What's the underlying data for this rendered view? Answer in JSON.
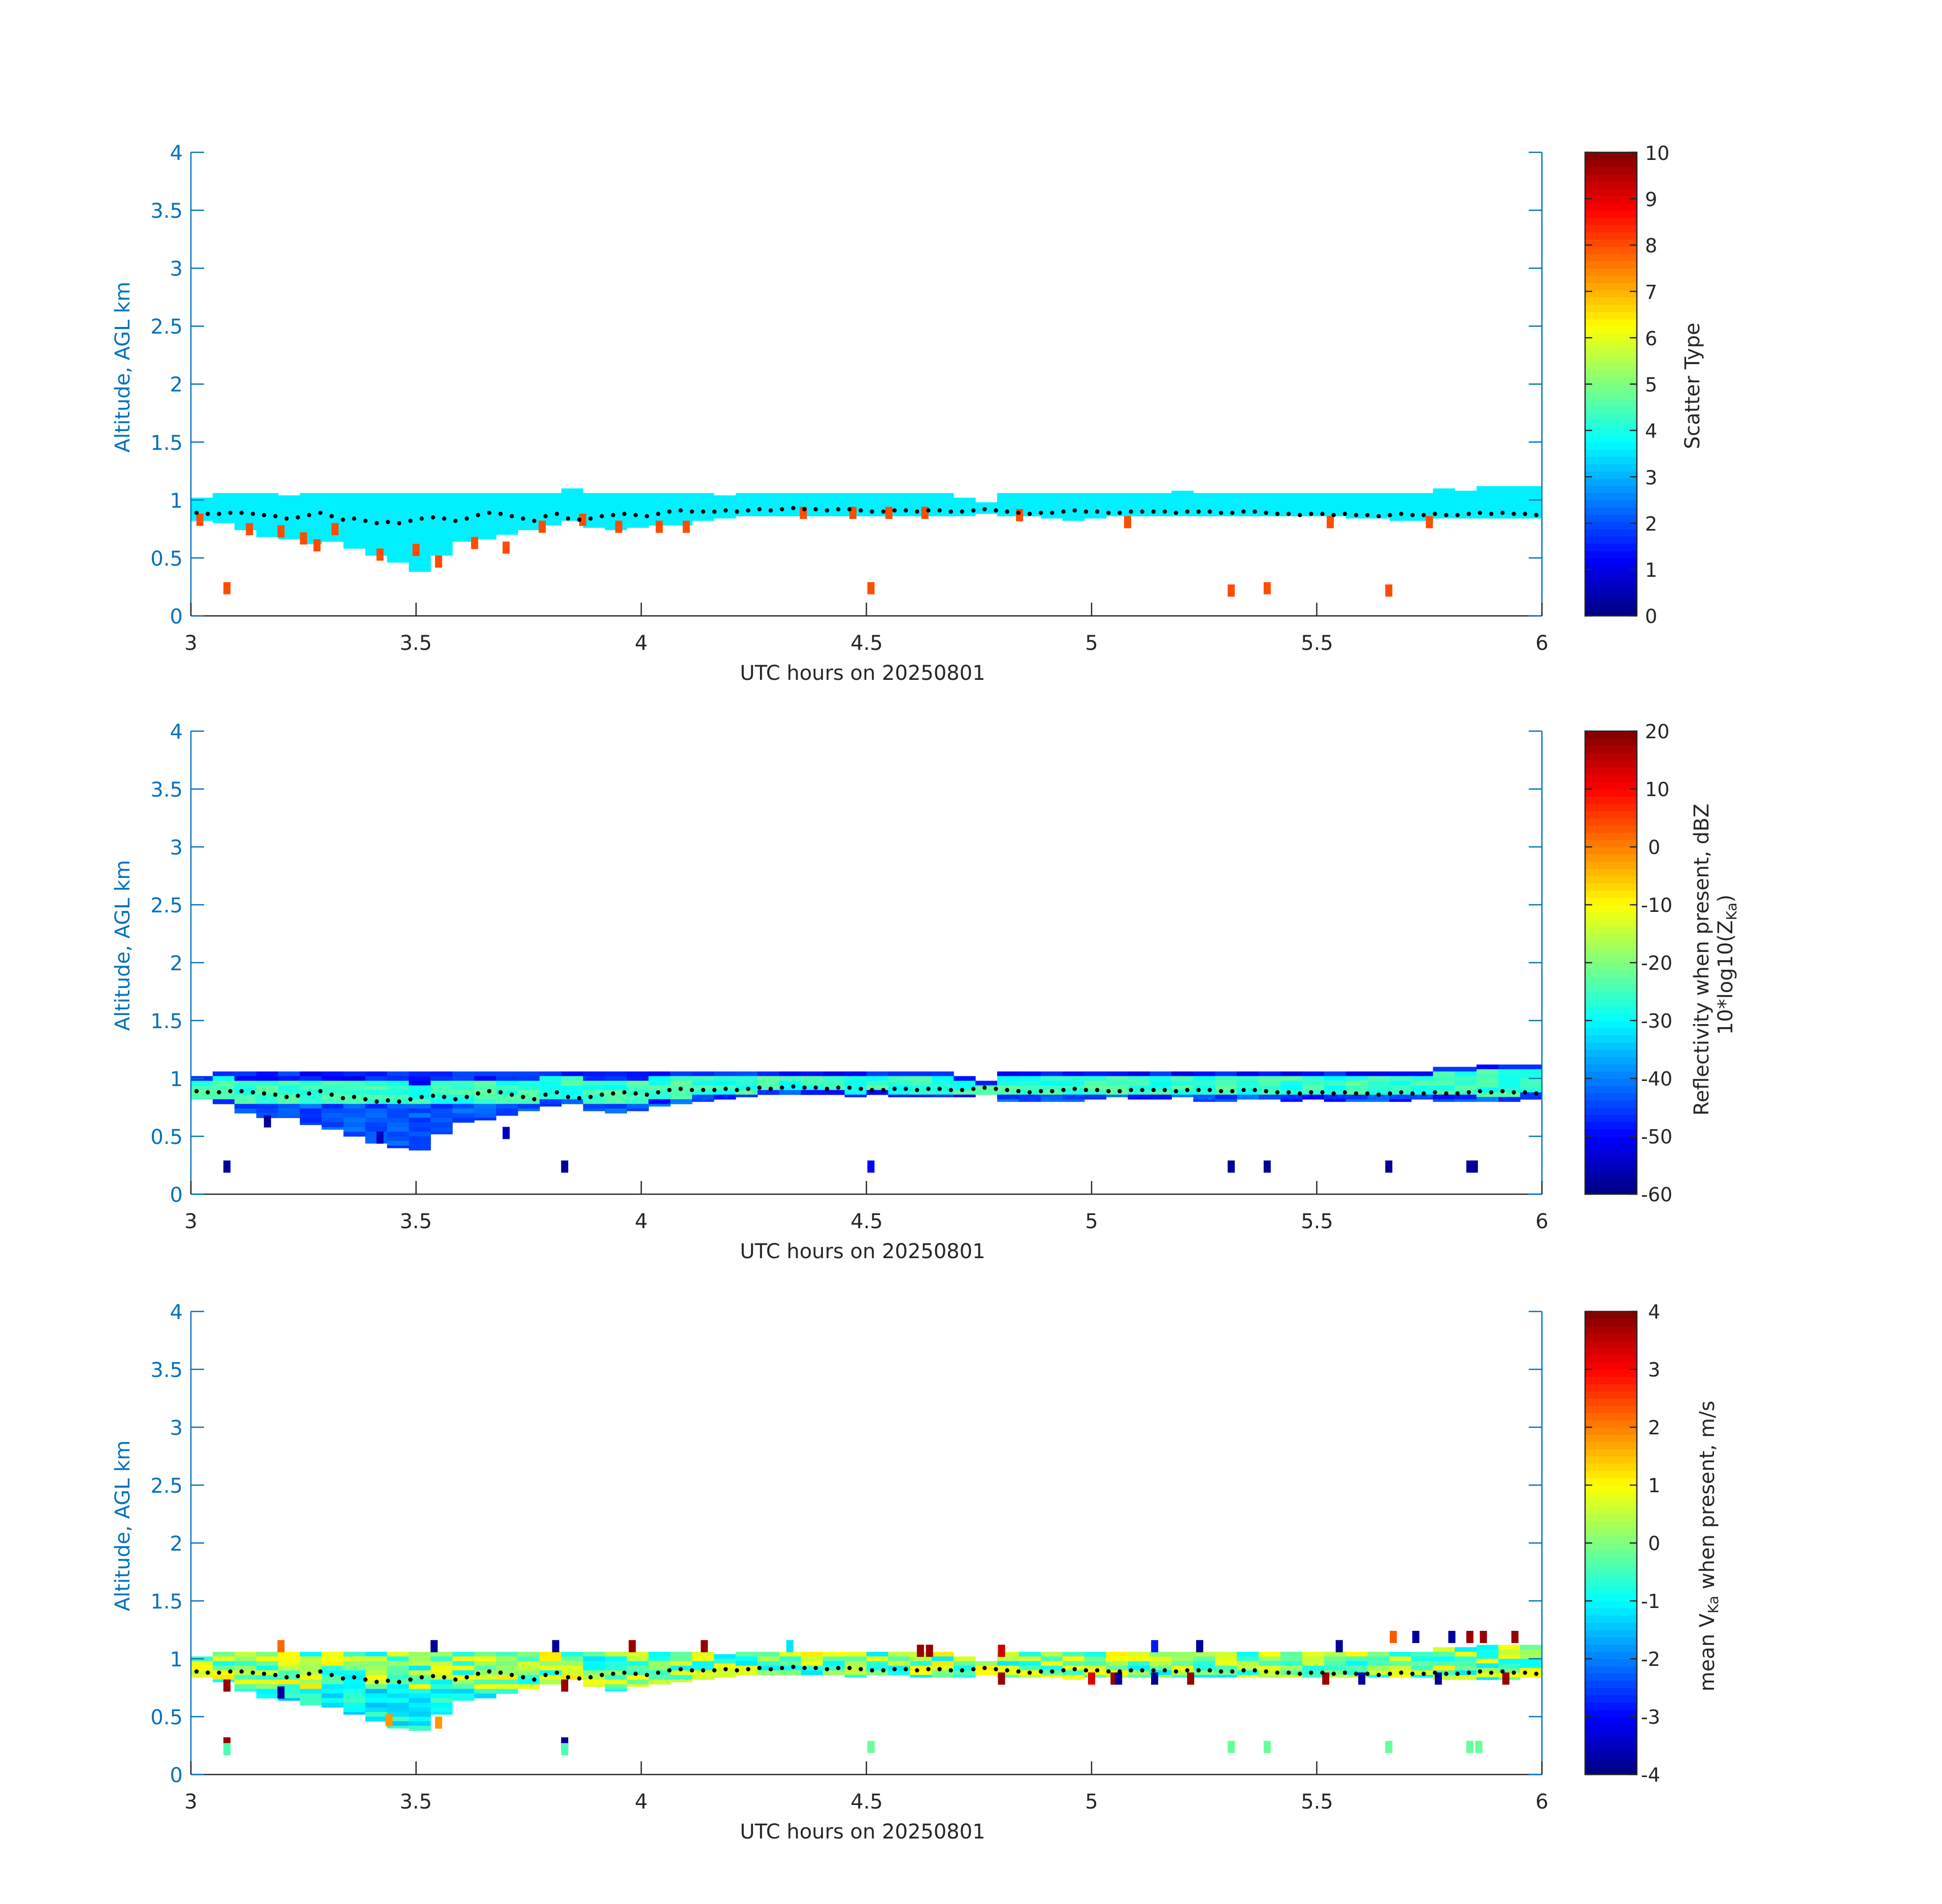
{
  "colors": {
    "axis_left": "#0072BD",
    "axis_bottom": "#262626",
    "background": "#ffffff",
    "colormap": "jet",
    "cloud_base_dots": "#000000"
  },
  "chart_data": [
    {
      "type": "heatmap",
      "xlabel": "UTC hours on 20250801",
      "ylabel": "Altitude, AGL km",
      "xlim": [
        3,
        6
      ],
      "ylim": [
        0,
        4
      ],
      "xticks": [
        "3",
        "3.5",
        "4",
        "4.5",
        "5",
        "5.5",
        "6"
      ],
      "yticks": [
        "0",
        "0.5",
        "1",
        "1.5",
        "2",
        "2.5",
        "3",
        "3.5",
        "4"
      ],
      "colorbar": {
        "label": "Scatter Type",
        "label2": "",
        "clim": [
          0,
          10
        ],
        "ticks": [
          "0",
          "1",
          "2",
          "3",
          "4",
          "5",
          "6",
          "7",
          "8",
          "9",
          "10"
        ]
      },
      "layer": {
        "value": 3.6,
        "top_km": [
          1.02,
          1.06,
          1.06,
          1.06,
          1.04,
          1.06,
          1.06,
          1.06,
          1.06,
          1.06,
          1.06,
          1.06,
          1.06,
          1.06,
          1.06,
          1.06,
          1.06,
          1.1,
          1.06,
          1.06,
          1.06,
          1.06,
          1.06,
          1.06,
          1.04,
          1.06,
          1.06,
          1.06,
          1.06,
          1.06,
          1.06,
          1.06,
          1.06,
          1.06,
          1.06,
          1.02,
          0.98,
          1.06,
          1.06,
          1.06,
          1.06,
          1.06,
          1.06,
          1.06,
          1.06,
          1.08,
          1.06,
          1.06,
          1.06,
          1.06,
          1.06,
          1.06,
          1.06,
          1.06,
          1.06,
          1.06,
          1.06,
          1.1,
          1.08,
          1.12,
          1.12,
          1.12
        ],
        "base_km": [
          0.82,
          0.8,
          0.74,
          0.68,
          0.66,
          0.62,
          0.64,
          0.58,
          0.52,
          0.46,
          0.38,
          0.52,
          0.64,
          0.66,
          0.7,
          0.74,
          0.78,
          0.82,
          0.76,
          0.74,
          0.76,
          0.78,
          0.78,
          0.82,
          0.84,
          0.86,
          0.86,
          0.86,
          0.86,
          0.86,
          0.86,
          0.86,
          0.86,
          0.86,
          0.86,
          0.86,
          0.88,
          0.86,
          0.86,
          0.84,
          0.82,
          0.84,
          0.86,
          0.86,
          0.86,
          0.86,
          0.86,
          0.86,
          0.86,
          0.86,
          0.86,
          0.86,
          0.86,
          0.84,
          0.84,
          0.82,
          0.82,
          0.84,
          0.84,
          0.84,
          0.84,
          0.84
        ]
      },
      "specks": [
        {
          "t": 3.02,
          "z": 0.82,
          "v": 8
        },
        {
          "t": 3.13,
          "z": 0.74,
          "v": 8
        },
        {
          "t": 3.2,
          "z": 0.72,
          "v": 8
        },
        {
          "t": 3.25,
          "z": 0.66,
          "v": 8
        },
        {
          "t": 3.28,
          "z": 0.6,
          "v": 8
        },
        {
          "t": 3.32,
          "z": 0.74,
          "v": 8
        },
        {
          "t": 3.42,
          "z": 0.52,
          "v": 8
        },
        {
          "t": 3.5,
          "z": 0.56,
          "v": 8
        },
        {
          "t": 3.55,
          "z": 0.46,
          "v": 8
        },
        {
          "t": 3.63,
          "z": 0.62,
          "v": 8
        },
        {
          "t": 3.7,
          "z": 0.58,
          "v": 8
        },
        {
          "t": 3.78,
          "z": 0.76,
          "v": 8
        },
        {
          "t": 3.87,
          "z": 0.82,
          "v": 8
        },
        {
          "t": 3.95,
          "z": 0.76,
          "v": 8
        },
        {
          "t": 4.04,
          "z": 0.76,
          "v": 8
        },
        {
          "t": 4.1,
          "z": 0.76,
          "v": 8
        },
        {
          "t": 4.36,
          "z": 0.88,
          "v": 8
        },
        {
          "t": 4.47,
          "z": 0.88,
          "v": 8
        },
        {
          "t": 4.55,
          "z": 0.88,
          "v": 8
        },
        {
          "t": 4.63,
          "z": 0.88,
          "v": 8
        },
        {
          "t": 4.84,
          "z": 0.86,
          "v": 8
        },
        {
          "t": 5.08,
          "z": 0.8,
          "v": 8
        },
        {
          "t": 5.53,
          "z": 0.8,
          "v": 8
        },
        {
          "t": 5.75,
          "z": 0.8,
          "v": 8
        },
        {
          "t": 3.08,
          "z": 0.23,
          "v": 8
        },
        {
          "t": 4.51,
          "z": 0.23,
          "v": 8
        },
        {
          "t": 5.31,
          "z": 0.21,
          "v": 8
        },
        {
          "t": 5.39,
          "z": 0.23,
          "v": 8
        },
        {
          "t": 5.66,
          "z": 0.21,
          "v": 8
        }
      ]
    },
    {
      "type": "heatmap",
      "xlabel": "UTC hours on 20250801",
      "ylabel": "Altitude, AGL km",
      "xlim": [
        3,
        6
      ],
      "ylim": [
        0,
        4
      ],
      "xticks": [
        "3",
        "3.5",
        "4",
        "4.5",
        "5",
        "5.5",
        "6"
      ],
      "yticks": [
        "0",
        "0.5",
        "1",
        "1.5",
        "2",
        "2.5",
        "3",
        "3.5",
        "4"
      ],
      "colorbar": {
        "label": "Reflectivity when present, dBZ",
        "label2": "10*log10(Z",
        "label2_sub": "Ka",
        "label2_end": ")",
        "clim": [
          -60,
          20
        ],
        "ticks": [
          "-60",
          "-50",
          "-40",
          "-30",
          "-20",
          "-10",
          "0",
          "10",
          "20"
        ]
      },
      "layer": {
        "top_km": [
          1.02,
          1.06,
          1.06,
          1.06,
          1.06,
          1.06,
          1.06,
          1.06,
          1.06,
          1.06,
          1.06,
          1.06,
          1.06,
          1.06,
          1.06,
          1.06,
          1.06,
          1.06,
          1.06,
          1.06,
          1.06,
          1.06,
          1.06,
          1.06,
          1.06,
          1.06,
          1.06,
          1.06,
          1.06,
          1.06,
          1.06,
          1.06,
          1.06,
          1.06,
          1.06,
          1.02,
          0.98,
          1.06,
          1.06,
          1.06,
          1.06,
          1.06,
          1.06,
          1.06,
          1.06,
          1.06,
          1.06,
          1.06,
          1.06,
          1.06,
          1.06,
          1.06,
          1.06,
          1.06,
          1.06,
          1.06,
          1.06,
          1.1,
          1.1,
          1.12,
          1.12,
          1.12
        ],
        "base_km": [
          0.8,
          0.78,
          0.7,
          0.66,
          0.66,
          0.6,
          0.56,
          0.5,
          0.44,
          0.4,
          0.38,
          0.52,
          0.62,
          0.64,
          0.68,
          0.72,
          0.76,
          0.78,
          0.72,
          0.7,
          0.72,
          0.76,
          0.78,
          0.8,
          0.82,
          0.84,
          0.86,
          0.86,
          0.86,
          0.86,
          0.84,
          0.86,
          0.84,
          0.84,
          0.84,
          0.84,
          0.86,
          0.8,
          0.8,
          0.8,
          0.8,
          0.82,
          0.84,
          0.82,
          0.82,
          0.84,
          0.8,
          0.8,
          0.82,
          0.82,
          0.8,
          0.82,
          0.8,
          0.8,
          0.8,
          0.8,
          0.82,
          0.8,
          0.8,
          0.8,
          0.8,
          0.82
        ]
      },
      "specks": [
        {
          "t": 3.08,
          "z": 0.23,
          "v": -58
        },
        {
          "t": 3.83,
          "z": 0.23,
          "v": -58
        },
        {
          "t": 4.51,
          "z": 0.23,
          "v": -50
        },
        {
          "t": 5.31,
          "z": 0.23,
          "v": -58
        },
        {
          "t": 5.39,
          "z": 0.23,
          "v": -58
        },
        {
          "t": 5.66,
          "z": 0.23,
          "v": -58
        },
        {
          "t": 5.84,
          "z": 0.23,
          "v": -58
        },
        {
          "t": 5.85,
          "z": 0.23,
          "v": -58
        },
        {
          "t": 3.42,
          "z": 0.48,
          "v": -55
        },
        {
          "t": 3.7,
          "z": 0.52,
          "v": -55
        },
        {
          "t": 3.17,
          "z": 0.62,
          "v": -58
        }
      ]
    },
    {
      "type": "heatmap",
      "xlabel": "UTC hours on 20250801",
      "ylabel": "Altitude, AGL km",
      "xlim": [
        3,
        6
      ],
      "ylim": [
        0,
        4
      ],
      "xticks": [
        "3",
        "3.5",
        "4",
        "4.5",
        "5",
        "5.5",
        "6"
      ],
      "yticks": [
        "0",
        "0.5",
        "1",
        "1.5",
        "2",
        "2.5",
        "3",
        "3.5",
        "4"
      ],
      "colorbar": {
        "label": "mean V",
        "label_sub": "Ka",
        "label_end": " when present, m/s",
        "label2": "",
        "clim": [
          -4,
          4
        ],
        "ticks": [
          "-4",
          "-3",
          "-2",
          "-1",
          "0",
          "1",
          "2",
          "3",
          "4"
        ]
      },
      "layer": {
        "top_km": [
          1.02,
          1.06,
          1.06,
          1.06,
          1.06,
          1.06,
          1.06,
          1.06,
          1.06,
          1.06,
          1.06,
          1.06,
          1.06,
          1.06,
          1.06,
          1.06,
          1.06,
          1.06,
          1.06,
          1.06,
          1.06,
          1.06,
          1.06,
          1.06,
          1.04,
          1.06,
          1.06,
          1.06,
          1.06,
          1.06,
          1.06,
          1.06,
          1.06,
          1.06,
          1.06,
          1.02,
          0.98,
          1.06,
          1.06,
          1.06,
          1.06,
          1.06,
          1.06,
          1.06,
          1.06,
          1.06,
          1.06,
          1.06,
          1.06,
          1.06,
          1.06,
          1.06,
          1.06,
          1.06,
          1.06,
          1.06,
          1.06,
          1.1,
          1.1,
          1.12,
          1.12,
          1.12
        ],
        "base_km": [
          0.84,
          0.8,
          0.72,
          0.66,
          0.64,
          0.6,
          0.58,
          0.52,
          0.46,
          0.4,
          0.38,
          0.52,
          0.64,
          0.66,
          0.7,
          0.74,
          0.78,
          0.82,
          0.76,
          0.72,
          0.76,
          0.78,
          0.8,
          0.82,
          0.84,
          0.86,
          0.86,
          0.86,
          0.86,
          0.86,
          0.84,
          0.86,
          0.86,
          0.84,
          0.84,
          0.84,
          0.86,
          0.84,
          0.84,
          0.84,
          0.82,
          0.84,
          0.84,
          0.84,
          0.84,
          0.84,
          0.84,
          0.84,
          0.84,
          0.84,
          0.84,
          0.84,
          0.84,
          0.84,
          0.84,
          0.84,
          0.84,
          0.82,
          0.82,
          0.82,
          0.82,
          0.84
        ]
      },
      "specks": [
        {
          "t": 3.08,
          "z": 0.26,
          "v": 3.8
        },
        {
          "t": 3.08,
          "z": 0.21,
          "v": -0.4
        },
        {
          "t": 3.83,
          "z": 0.26,
          "v": -3.8
        },
        {
          "t": 3.83,
          "z": 0.21,
          "v": -0.4
        },
        {
          "t": 4.51,
          "z": 0.23,
          "v": -0.2
        },
        {
          "t": 5.31,
          "z": 0.23,
          "v": -0.2
        },
        {
          "t": 5.39,
          "z": 0.23,
          "v": -0.2
        },
        {
          "t": 5.66,
          "z": 0.23,
          "v": -0.2
        },
        {
          "t": 5.84,
          "z": 0.23,
          "v": -0.2
        },
        {
          "t": 5.86,
          "z": 0.23,
          "v": -0.2
        },
        {
          "t": 3.2,
          "z": 1.1,
          "v": 2.2
        },
        {
          "t": 3.54,
          "z": 1.1,
          "v": -3.8
        },
        {
          "t": 3.81,
          "z": 1.1,
          "v": -3.8
        },
        {
          "t": 3.98,
          "z": 1.1,
          "v": 3.8
        },
        {
          "t": 4.14,
          "z": 1.1,
          "v": 3.8
        },
        {
          "t": 4.33,
          "z": 1.1,
          "v": -1.2
        },
        {
          "t": 4.62,
          "z": 1.06,
          "v": 3.8
        },
        {
          "t": 4.64,
          "z": 1.06,
          "v": 3.8
        },
        {
          "t": 4.8,
          "z": 1.06,
          "v": 3.4
        },
        {
          "t": 5.24,
          "z": 1.1,
          "v": -3.8
        },
        {
          "t": 5.14,
          "z": 1.1,
          "v": -2.8
        },
        {
          "t": 5.55,
          "z": 1.1,
          "v": -3.8
        },
        {
          "t": 5.8,
          "z": 1.18,
          "v": -3.8
        },
        {
          "t": 5.72,
          "z": 1.18,
          "v": -3.8
        },
        {
          "t": 5.84,
          "z": 1.18,
          "v": 3.8
        },
        {
          "t": 5.87,
          "z": 1.18,
          "v": 3.8
        },
        {
          "t": 5.94,
          "z": 1.18,
          "v": 3.8
        },
        {
          "t": 5.67,
          "z": 1.18,
          "v": 2.3
        },
        {
          "t": 3.08,
          "z": 0.76,
          "v": 3.8
        },
        {
          "t": 3.83,
          "z": 0.76,
          "v": 3.8
        },
        {
          "t": 4.8,
          "z": 0.82,
          "v": 3.8
        },
        {
          "t": 5.0,
          "z": 0.82,
          "v": 3.2
        },
        {
          "t": 5.05,
          "z": 0.82,
          "v": 3.8
        },
        {
          "t": 5.06,
          "z": 0.82,
          "v": -3.8
        },
        {
          "t": 5.14,
          "z": 0.82,
          "v": -3.8
        },
        {
          "t": 5.22,
          "z": 0.82,
          "v": 3.8
        },
        {
          "t": 5.52,
          "z": 0.82,
          "v": 3.8
        },
        {
          "t": 5.6,
          "z": 0.82,
          "v": -3.8
        },
        {
          "t": 5.92,
          "z": 0.82,
          "v": 3.8
        },
        {
          "t": 5.77,
          "z": 0.82,
          "v": -3.8
        },
        {
          "t": 3.44,
          "z": 0.46,
          "v": 1.8
        },
        {
          "t": 3.55,
          "z": 0.44,
          "v": 1.8
        },
        {
          "t": 3.2,
          "z": 0.7,
          "v": -3.8
        }
      ]
    }
  ],
  "cloud_base_km": [
    0.89,
    0.88,
    0.88,
    0.89,
    0.89,
    0.88,
    0.87,
    0.86,
    0.84,
    0.85,
    0.87,
    0.89,
    0.86,
    0.83,
    0.84,
    0.82,
    0.8,
    0.81,
    0.8,
    0.82,
    0.84,
    0.85,
    0.84,
    0.82,
    0.84,
    0.87,
    0.89,
    0.88,
    0.86,
    0.84,
    0.82,
    0.86,
    0.88,
    0.84,
    0.83,
    0.84,
    0.86,
    0.87,
    0.88,
    0.87,
    0.86,
    0.88,
    0.9,
    0.91,
    0.9,
    0.9,
    0.9,
    0.91,
    0.9,
    0.91,
    0.92,
    0.91,
    0.92,
    0.93,
    0.92,
    0.92,
    0.91,
    0.92,
    0.92,
    0.91,
    0.9,
    0.9,
    0.91,
    0.91,
    0.9,
    0.91,
    0.91,
    0.9,
    0.9,
    0.91,
    0.92,
    0.91,
    0.9,
    0.89,
    0.88,
    0.89,
    0.89,
    0.9,
    0.91,
    0.9,
    0.9,
    0.89,
    0.89,
    0.9,
    0.9,
    0.9,
    0.9,
    0.89,
    0.9,
    0.9,
    0.9,
    0.89,
    0.89,
    0.9,
    0.9,
    0.89,
    0.88,
    0.88,
    0.87,
    0.88,
    0.88,
    0.87,
    0.88,
    0.87,
    0.87,
    0.86,
    0.87,
    0.88,
    0.87,
    0.87,
    0.88,
    0.87,
    0.87,
    0.88,
    0.89,
    0.88,
    0.89,
    0.88,
    0.88,
    0.87
  ]
}
